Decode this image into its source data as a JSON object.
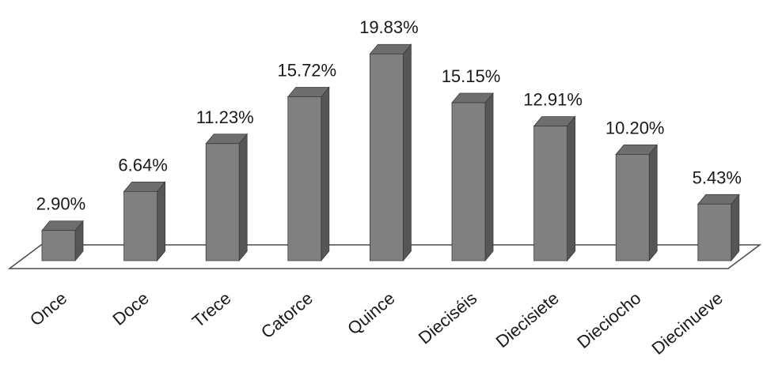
{
  "chart_data": {
    "type": "bar",
    "style": "3d-column",
    "categories": [
      "Once",
      "Doce",
      "Trece",
      "Catorce",
      "Quince",
      "Dieciséis",
      "Diecisiete",
      "Dieciocho",
      "Diecinueve"
    ],
    "values": [
      2.9,
      6.64,
      11.23,
      15.72,
      19.83,
      15.15,
      12.91,
      10.2,
      5.43
    ],
    "data_labels": [
      "2.90%",
      "6.64%",
      "11.23%",
      "15.72%",
      "19.83%",
      "15.15%",
      "12.91%",
      "10.20%",
      "5.43%"
    ],
    "value_unit": "%",
    "title": "",
    "xlabel": "",
    "ylabel": "",
    "grid": false,
    "legend": "none",
    "colors": {
      "bar_front": "#808080",
      "bar_top": "#6e6e6e",
      "bar_side": "#565656",
      "bar_outline": "#3a3a3a",
      "floor": "#ffffff",
      "floor_outline": "#4a4a4a",
      "text": "#1a1a1a"
    }
  }
}
